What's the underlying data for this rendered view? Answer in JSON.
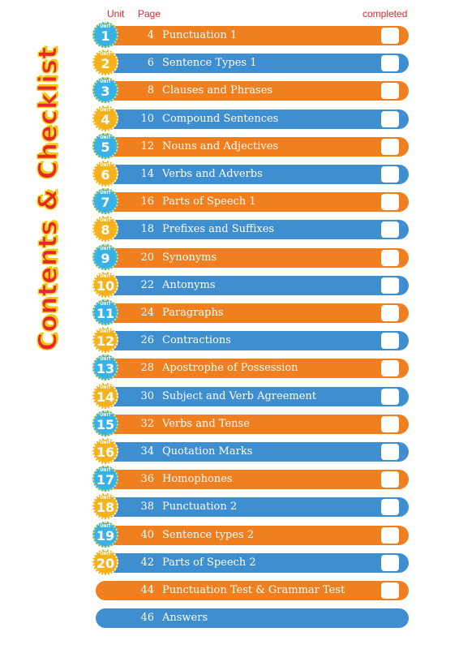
{
  "side_title": "Contents & Checklist",
  "header": {
    "unit": "Unit",
    "page": "Page",
    "completed": "completed"
  },
  "badge_label": "UNIT",
  "colors": {
    "orange": "#f07f1f",
    "blue": "#3f8fd0",
    "red": "#e2262a"
  },
  "rows": [
    {
      "unit": "1",
      "page": "4",
      "title": "Punctuation 1",
      "color": "orange"
    },
    {
      "unit": "2",
      "page": "6",
      "title": "Sentence Types 1",
      "color": "blue"
    },
    {
      "unit": "3",
      "page": "8",
      "title": "Clauses and Phrases",
      "color": "orange"
    },
    {
      "unit": "4",
      "page": "10",
      "title": "Compound Sentences",
      "color": "blue"
    },
    {
      "unit": "5",
      "page": "12",
      "title": "Nouns and Adjectives",
      "color": "orange"
    },
    {
      "unit": "6",
      "page": "14",
      "title": "Verbs and Adverbs",
      "color": "blue"
    },
    {
      "unit": "7",
      "page": "16",
      "title": "Parts of Speech 1",
      "color": "orange"
    },
    {
      "unit": "8",
      "page": "18",
      "title": "Prefixes and Suffixes",
      "color": "blue"
    },
    {
      "unit": "9",
      "page": "20",
      "title": "Synonyms",
      "color": "orange"
    },
    {
      "unit": "10",
      "page": "22",
      "title": "Antonyms",
      "color": "blue"
    },
    {
      "unit": "11",
      "page": "24",
      "title": "Paragraphs",
      "color": "orange"
    },
    {
      "unit": "12",
      "page": "26",
      "title": "Contractions",
      "color": "blue"
    },
    {
      "unit": "13",
      "page": "28",
      "title": "Apostrophe of Possession",
      "color": "orange"
    },
    {
      "unit": "14",
      "page": "30",
      "title": "Subject and Verb Agreement",
      "color": "blue"
    },
    {
      "unit": "15",
      "page": "32",
      "title": "Verbs and Tense",
      "color": "orange"
    },
    {
      "unit": "16",
      "page": "34",
      "title": "Quotation Marks",
      "color": "blue"
    },
    {
      "unit": "17",
      "page": "36",
      "title": "Homophones",
      "color": "orange"
    },
    {
      "unit": "18",
      "page": "38",
      "title": "Punctuation 2",
      "color": "blue"
    },
    {
      "unit": "19",
      "page": "40",
      "title": "Sentence types 2",
      "color": "orange"
    },
    {
      "unit": "20",
      "page": "42",
      "title": "Parts of Speech 2",
      "color": "blue"
    },
    {
      "unit": "",
      "page": "44",
      "title": "Punctuation Test & Grammar Test",
      "color": "orange"
    },
    {
      "unit": "",
      "page": "46",
      "title": "Answers",
      "color": "blue",
      "no_check": true
    }
  ]
}
